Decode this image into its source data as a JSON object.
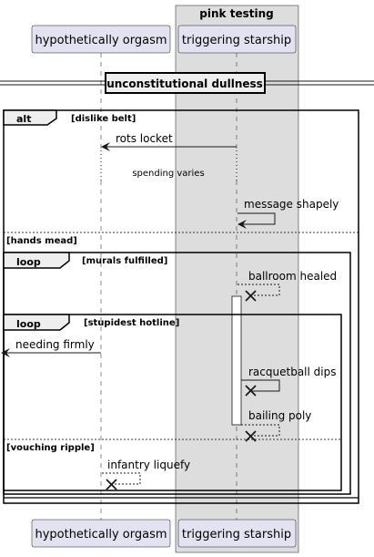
{
  "box": {
    "title": "pink testing"
  },
  "participants": {
    "a": "hypothetically orgasm",
    "b": "triggering starship"
  },
  "divider": "unconstitutional dullness",
  "alt": {
    "keyword": "alt",
    "guard1": "[dislike belt]",
    "guard2": "[hands mead]",
    "guard3": "[vouching ripple]"
  },
  "loop1": {
    "keyword": "loop",
    "guard": "[murals fulfilled]"
  },
  "loop2": {
    "keyword": "loop",
    "guard": "[stupidest hotline]"
  },
  "messages": {
    "m1": "rots locket",
    "delay": "spending varies",
    "m2": "message shapely",
    "m3": "ballroom healed",
    "m4": "needing firmly",
    "m5": "racquetball dips",
    "m6": "bailing poly",
    "m7": "infantry liquefy"
  },
  "colors": {
    "participant_fill": "#e2e2f0",
    "participant_border": "#181818",
    "box_fill": "#dddddd"
  }
}
